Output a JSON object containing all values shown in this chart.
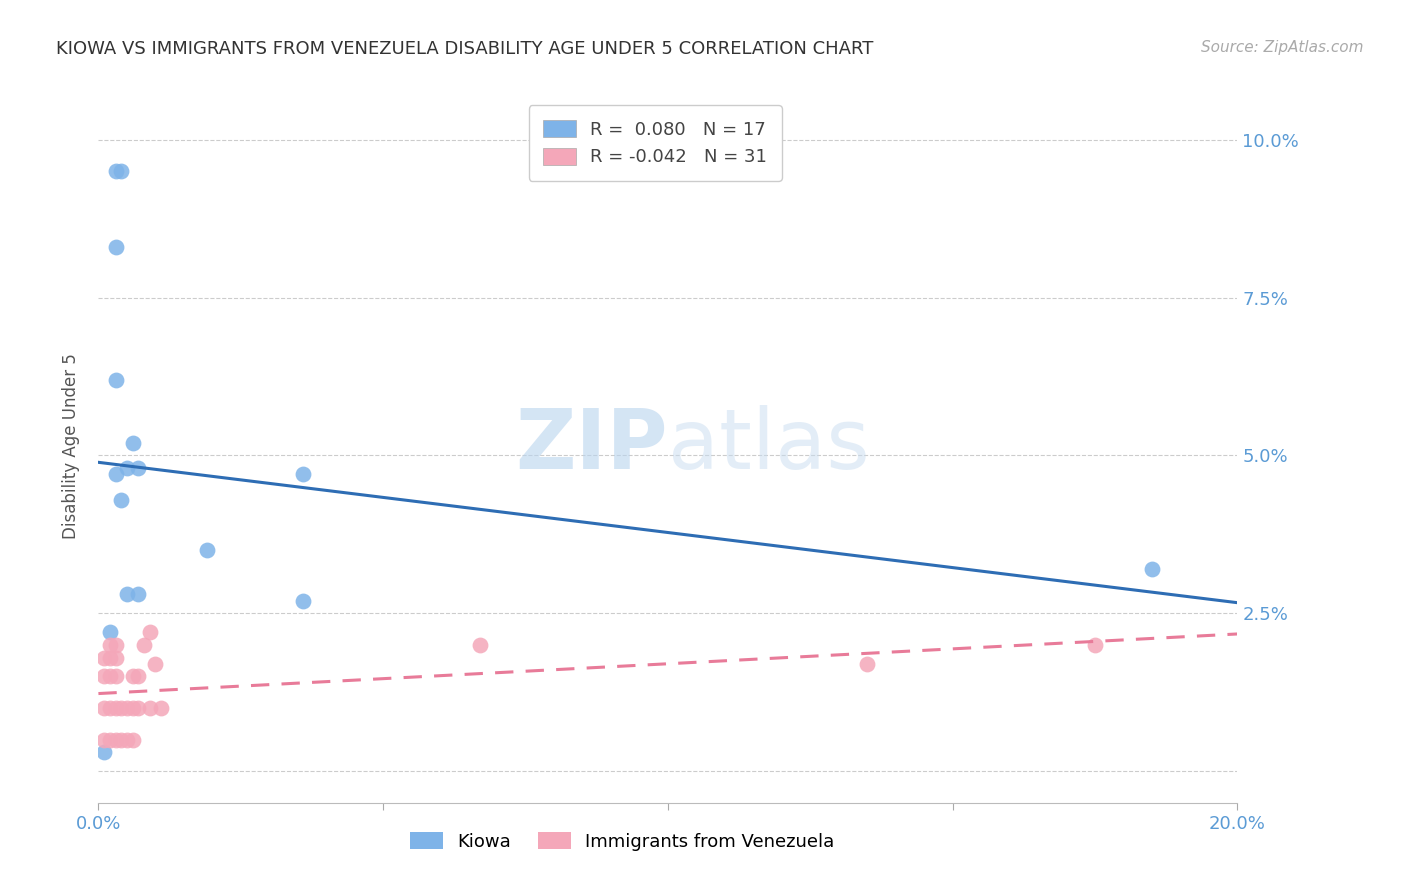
{
  "title": "KIOWA VS IMMIGRANTS FROM VENEZUELA DISABILITY AGE UNDER 5 CORRELATION CHART",
  "source": "Source: ZipAtlas.com",
  "ylabel": "Disability Age Under 5",
  "xlim": [
    0.0,
    0.2
  ],
  "ylim": [
    -0.005,
    0.108
  ],
  "yticks": [
    0.0,
    0.025,
    0.05,
    0.075,
    0.1
  ],
  "ytick_labels": [
    "",
    "2.5%",
    "5.0%",
    "7.5%",
    "10.0%"
  ],
  "xticks": [
    0.0,
    0.05,
    0.1,
    0.15,
    0.2
  ],
  "xtick_labels": [
    "0.0%",
    "",
    "",
    "",
    "20.0%"
  ],
  "kiowa_R": 0.08,
  "kiowa_N": 17,
  "venezuela_R": -0.042,
  "venezuela_N": 31,
  "kiowa_color": "#7EB3E8",
  "venezuela_color": "#F4A7B9",
  "kiowa_line_color": "#2E6DB4",
  "venezuela_line_color": "#E87B99",
  "watermark_zip": "ZIP",
  "watermark_atlas": "atlas",
  "background_color": "#FFFFFF",
  "kiowa_x": [
    0.001,
    0.002,
    0.003,
    0.003,
    0.003,
    0.003,
    0.004,
    0.004,
    0.005,
    0.005,
    0.006,
    0.007,
    0.007,
    0.019,
    0.036,
    0.036,
    0.185
  ],
  "kiowa_y": [
    0.003,
    0.022,
    0.047,
    0.062,
    0.083,
    0.095,
    0.095,
    0.043,
    0.028,
    0.048,
    0.052,
    0.048,
    0.028,
    0.035,
    0.027,
    0.047,
    0.032
  ],
  "venezuela_x": [
    0.001,
    0.001,
    0.001,
    0.001,
    0.002,
    0.002,
    0.002,
    0.002,
    0.002,
    0.003,
    0.003,
    0.003,
    0.003,
    0.003,
    0.004,
    0.004,
    0.005,
    0.005,
    0.006,
    0.006,
    0.006,
    0.007,
    0.007,
    0.008,
    0.009,
    0.009,
    0.01,
    0.011,
    0.067,
    0.135,
    0.175
  ],
  "venezuela_y": [
    0.005,
    0.01,
    0.015,
    0.018,
    0.005,
    0.01,
    0.015,
    0.018,
    0.02,
    0.005,
    0.01,
    0.015,
    0.018,
    0.02,
    0.005,
    0.01,
    0.005,
    0.01,
    0.005,
    0.01,
    0.015,
    0.01,
    0.015,
    0.02,
    0.01,
    0.022,
    0.017,
    0.01,
    0.02,
    0.017,
    0.02
  ]
}
